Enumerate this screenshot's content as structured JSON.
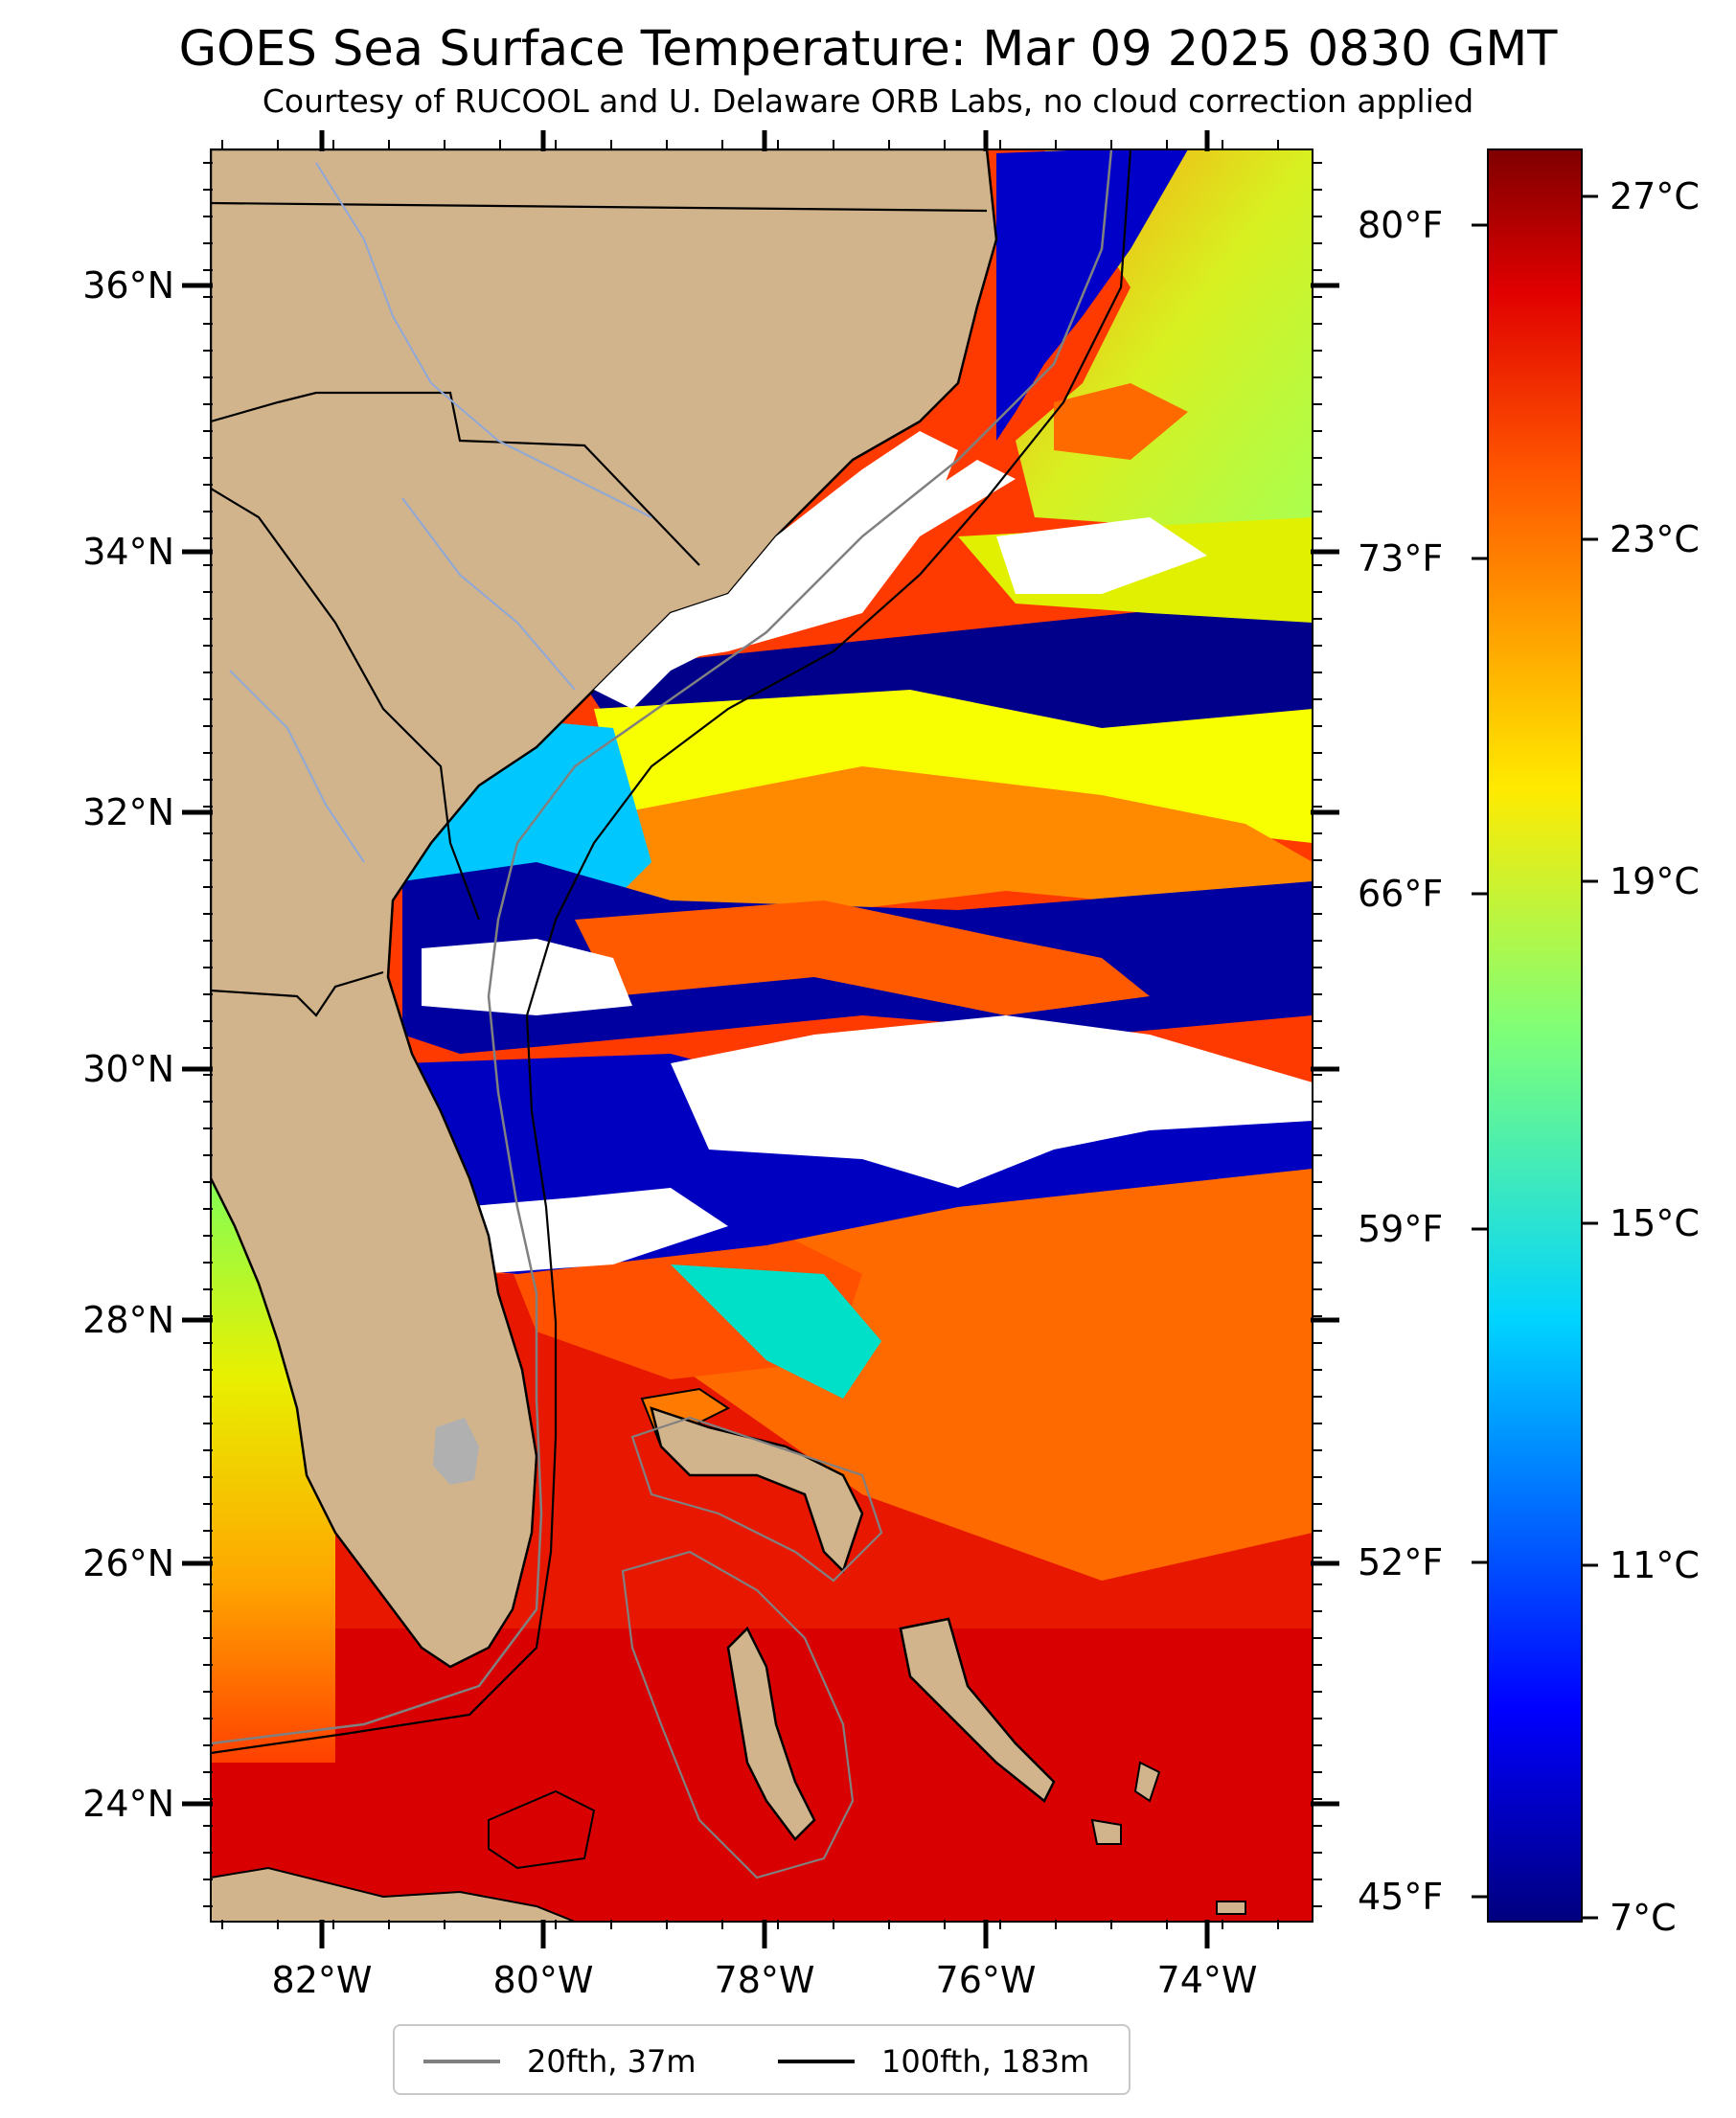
{
  "title": "GOES Sea Surface Temperature: Mar 09 2025 0830 GMT",
  "subtitle": "Courtesy of RUCOOL and U. Delaware ORB Labs, no cloud correction applied",
  "map": {
    "lat_ticks": [
      "36°N",
      "34°N",
      "32°N",
      "30°N",
      "28°N",
      "26°N",
      "24°N"
    ],
    "lon_ticks": [
      "82°W",
      "80°W",
      "78°W",
      "76°W",
      "74°W"
    ],
    "fahrenheit_ticks": [
      "80°F",
      "73°F",
      "66°F",
      "59°F",
      "52°F",
      "45°F"
    ],
    "extent": {
      "lon": [
        -83,
        -73
      ],
      "lat": [
        23,
        37
      ]
    }
  },
  "colorbar": {
    "celsius_ticks": [
      "27°C",
      "23°C",
      "19°C",
      "15°C",
      "11°C",
      "7°C"
    ],
    "range_c": [
      7,
      28
    ]
  },
  "legend": {
    "items": [
      {
        "label": "20fth, 37m",
        "color": "#808080"
      },
      {
        "label": "100fth, 183m",
        "color": "#000000"
      }
    ]
  },
  "colors": {
    "land": "#d2b48c",
    "cloud": "#ffffff",
    "cold": "#00008b",
    "warm": "#cc0000"
  }
}
